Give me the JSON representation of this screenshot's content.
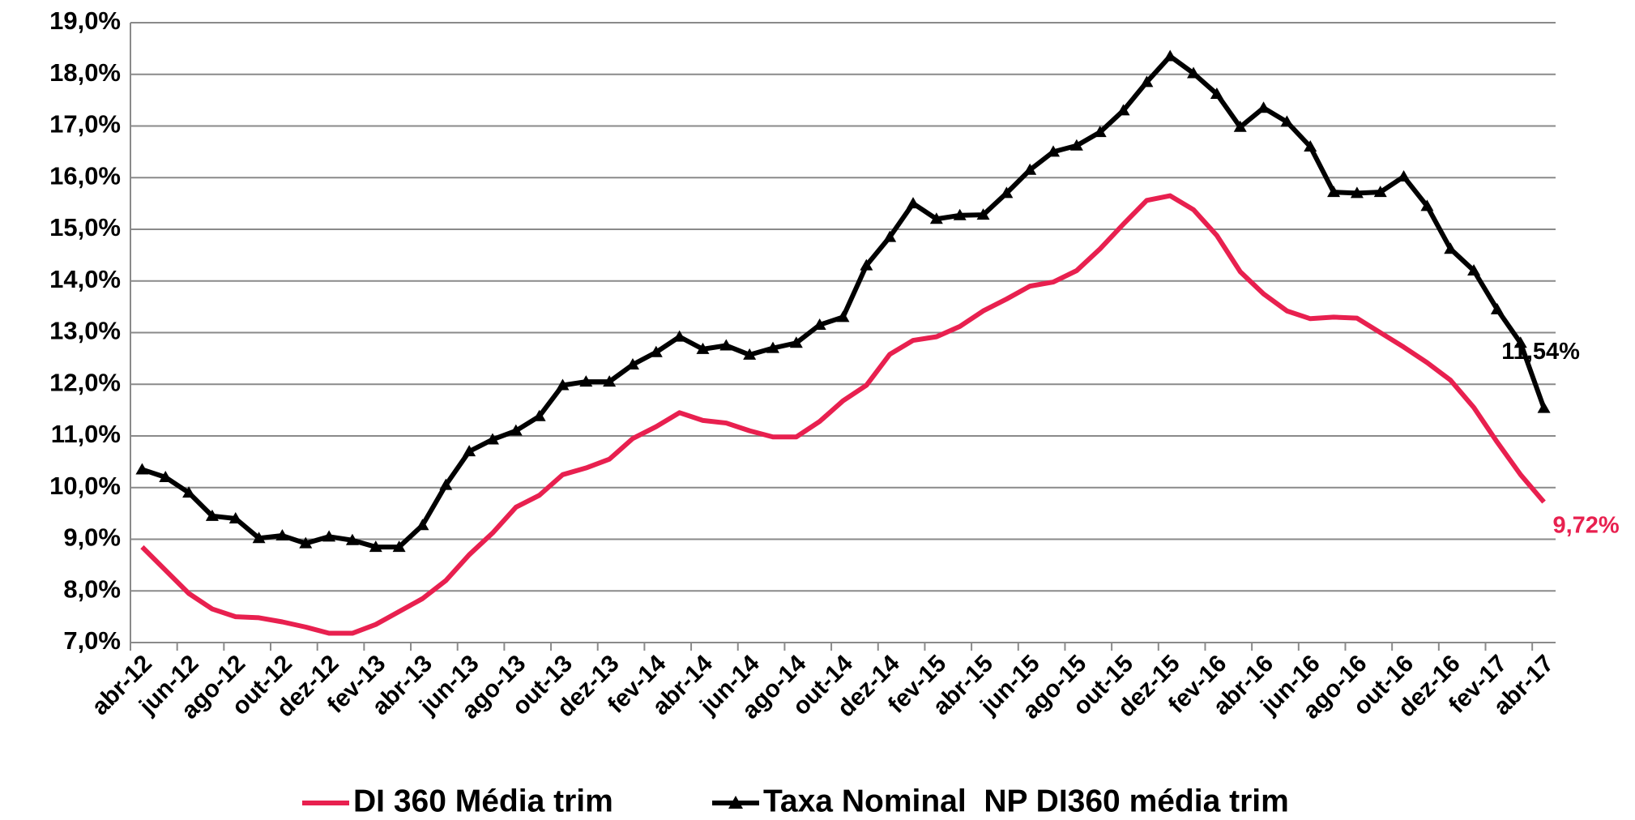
{
  "chart_data": {
    "type": "line",
    "categories": [
      "abr-12",
      null,
      "jun-12",
      null,
      "ago-12",
      null,
      "out-12",
      null,
      "dez-12",
      null,
      "fev-13",
      null,
      "abr-13",
      null,
      "jun-13",
      null,
      "ago-13",
      null,
      "out-13",
      null,
      "dez-13",
      null,
      "fev-14",
      null,
      "abr-14",
      null,
      "jun-14",
      null,
      "ago-14",
      null,
      "out-14",
      null,
      "dez-14",
      null,
      "fev-15",
      null,
      "abr-15",
      null,
      "jun-15",
      null,
      "ago-15",
      null,
      "out-15",
      null,
      "dez-15",
      null,
      "fev-16",
      null,
      "abr-16",
      null,
      "jun-16",
      null,
      "ago-16",
      null,
      "out-16",
      null,
      "dez-16",
      null,
      "fev-17",
      null,
      "abr-17"
    ],
    "series": [
      {
        "name": "DI 360 Média trim",
        "color": "#e8204f",
        "marker": "none",
        "values": [
          8.85,
          8.4,
          7.95,
          7.65,
          7.5,
          7.48,
          7.4,
          7.3,
          7.18,
          7.18,
          7.35,
          7.6,
          7.85,
          8.2,
          8.7,
          9.12,
          9.62,
          9.85,
          10.25,
          10.38,
          10.55,
          10.95,
          11.18,
          11.45,
          11.3,
          11.25,
          11.1,
          10.98,
          10.98,
          11.28,
          11.68,
          11.98,
          12.58,
          12.85,
          12.92,
          13.12,
          13.42,
          13.65,
          13.9,
          13.98,
          14.2,
          14.62,
          15.1,
          15.56,
          15.65,
          15.38,
          14.88,
          14.18,
          13.75,
          13.42,
          13.27,
          13.3,
          13.28,
          13.0,
          12.72,
          12.42,
          12.08,
          11.55,
          10.88,
          10.25,
          9.72
        ],
        "value_labels": [
          null,
          null,
          null,
          null,
          null,
          null,
          null,
          null,
          null,
          null,
          null,
          null,
          null,
          null,
          null,
          null,
          null,
          null,
          null,
          null,
          null,
          null,
          null,
          null,
          null,
          null,
          null,
          null,
          null,
          null,
          null,
          null,
          null,
          null,
          null,
          null,
          null,
          null,
          null,
          null,
          null,
          null,
          null,
          null,
          null,
          null,
          null,
          null,
          null,
          null,
          null,
          null,
          null,
          null,
          null,
          null,
          null,
          null,
          null,
          null,
          "9,72%"
        ]
      },
      {
        "name": "Taxa Nominal  NP DI360 média trim",
        "color": "#000000",
        "marker": "triangle",
        "values": [
          10.35,
          10.2,
          9.9,
          9.45,
          9.4,
          9.02,
          9.07,
          8.92,
          9.05,
          8.98,
          8.85,
          8.85,
          9.27,
          10.05,
          10.7,
          10.93,
          11.1,
          11.38,
          11.98,
          12.05,
          12.05,
          12.38,
          12.62,
          12.92,
          12.68,
          12.75,
          12.57,
          12.7,
          12.8,
          13.15,
          13.3,
          14.3,
          14.85,
          15.5,
          15.2,
          15.27,
          15.28,
          15.7,
          16.15,
          16.5,
          16.62,
          16.88,
          17.3,
          17.85,
          18.35,
          18.02,
          17.62,
          16.98,
          17.35,
          17.08,
          16.6,
          15.72,
          15.7,
          15.72,
          16.02,
          15.45,
          14.62,
          14.2,
          13.45,
          12.8,
          11.54
        ],
        "value_labels": [
          null,
          null,
          null,
          null,
          null,
          null,
          null,
          null,
          null,
          null,
          null,
          null,
          null,
          null,
          null,
          null,
          null,
          null,
          null,
          null,
          null,
          null,
          null,
          null,
          null,
          null,
          null,
          null,
          null,
          null,
          null,
          null,
          null,
          null,
          null,
          null,
          null,
          null,
          null,
          null,
          null,
          null,
          null,
          null,
          null,
          null,
          null,
          null,
          null,
          null,
          null,
          null,
          null,
          null,
          null,
          null,
          null,
          null,
          null,
          null,
          "11,54%"
        ]
      }
    ],
    "ylim": [
      7,
      19
    ],
    "yticks": [
      {
        "value": 7,
        "label": "7,0%"
      },
      {
        "value": 8,
        "label": "8,0%"
      },
      {
        "value": 9,
        "label": "9,0%"
      },
      {
        "value": 10,
        "label": "10,0%"
      },
      {
        "value": 11,
        "label": "11,0%"
      },
      {
        "value": 12,
        "label": "12,0%"
      },
      {
        "value": 13,
        "label": "13,0%"
      },
      {
        "value": 14,
        "label": "14,0%"
      },
      {
        "value": 15,
        "label": "15,0%"
      },
      {
        "value": 16,
        "label": "16,0%"
      },
      {
        "value": 17,
        "label": "17,0%"
      },
      {
        "value": 18,
        "label": "18,0%"
      },
      {
        "value": 19,
        "label": "19,0%"
      }
    ],
    "grid": true,
    "legend": "bottom"
  }
}
